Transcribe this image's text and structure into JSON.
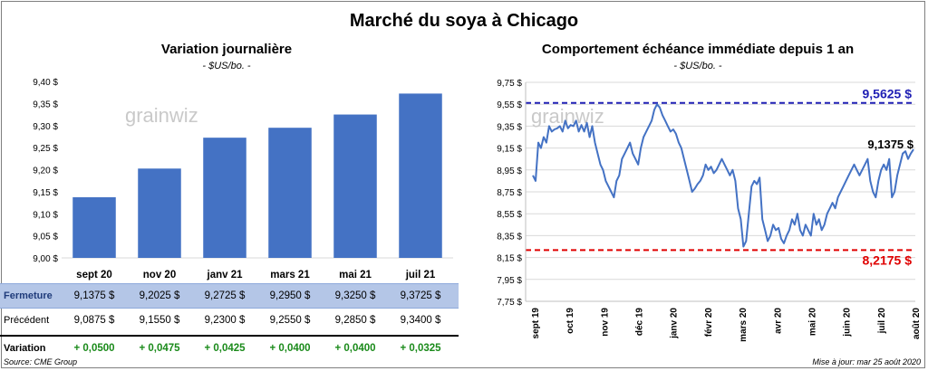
{
  "title": "Marché du soya à Chicago",
  "left": {
    "title": "Variation  journalière",
    "unit": "- $US/bo. -"
  },
  "right": {
    "title": "Comportement  échéance immédiate depuis 1 an",
    "unit": "- $US/bo. -"
  },
  "watermark": "grainwiz",
  "chart_data": [
    {
      "type": "bar",
      "title": "Variation  journalière",
      "ylabel": "- $US/bo. -",
      "categories": [
        "sept 20",
        "nov 20",
        "janv 21",
        "mars 21",
        "mai 21",
        "juil 21"
      ],
      "values": [
        9.1375,
        9.2025,
        9.2725,
        9.295,
        9.325,
        9.3725
      ],
      "ylim": [
        9.0,
        9.4
      ],
      "yticks": [
        "9,00 $",
        "9,05 $",
        "9,10 $",
        "9,15 $",
        "9,20 $",
        "9,25 $",
        "9,30 $",
        "9,35 $",
        "9,40 $"
      ],
      "color": "#4472c4",
      "grid": false
    },
    {
      "type": "line",
      "title": "Comportement  échéance immédiate depuis 1 an",
      "ylabel": "- $US/bo. -",
      "ylim": [
        7.75,
        9.75
      ],
      "yticks": [
        "7,75 $",
        "7,95 $",
        "8,15 $",
        "8,35 $",
        "8,55 $",
        "8,75 $",
        "8,95 $",
        "9,15 $",
        "9,35 $",
        "9,55 $",
        "9,75 $"
      ],
      "xticks": [
        "sept 19",
        "oct 19",
        "nov 19",
        "déc 19",
        "janv 20",
        "févr 20",
        "mars 20",
        "avr 20",
        "mai 20",
        "juin 20",
        "juil 20",
        "août 20"
      ],
      "series": [
        {
          "values": [
            8.9,
            8.85,
            9.2,
            9.15,
            9.25,
            9.2,
            9.35,
            9.3,
            9.32,
            9.33,
            9.35,
            9.3,
            9.4,
            9.33,
            9.36,
            9.35,
            9.4,
            9.3,
            9.36,
            9.3,
            9.38,
            9.25,
            9.35,
            9.2,
            9.1,
            9.0,
            8.95,
            8.85,
            8.8,
            8.75,
            8.7,
            8.85,
            8.9,
            9.05,
            9.1,
            9.15,
            9.2,
            9.1,
            9.05,
            9.0,
            9.15,
            9.25,
            9.3,
            9.35,
            9.4,
            9.5,
            9.55,
            9.52,
            9.45,
            9.4,
            9.35,
            9.3,
            9.32,
            9.28,
            9.2,
            9.15,
            9.05,
            8.95,
            8.85,
            8.75,
            8.78,
            8.82,
            8.85,
            8.9,
            9.0,
            8.95,
            8.98,
            8.92,
            8.95,
            9.0,
            9.05,
            9.0,
            8.95,
            8.9,
            8.95,
            8.85,
            8.6,
            8.5,
            8.25,
            8.3,
            8.55,
            8.8,
            8.85,
            8.82,
            8.88,
            8.5,
            8.4,
            8.3,
            8.35,
            8.45,
            8.4,
            8.42,
            8.32,
            8.28,
            8.35,
            8.4,
            8.5,
            8.45,
            8.55,
            8.4,
            8.35,
            8.45,
            8.4,
            8.35,
            8.55,
            8.45,
            8.5,
            8.4,
            8.45,
            8.55,
            8.6,
            8.65,
            8.6,
            8.7,
            8.75,
            8.8,
            8.85,
            8.9,
            8.95,
            9.0,
            8.95,
            8.9,
            8.95,
            9.0,
            9.05,
            8.85,
            8.75,
            8.7,
            8.85,
            8.95,
            9.0,
            8.95,
            9.05,
            8.7,
            8.75,
            8.9,
            9.0,
            9.1,
            9.12,
            9.05,
            9.1,
            9.1375
          ]
        }
      ],
      "reference_lines": [
        {
          "label": "9,5625 $",
          "value": 9.5625,
          "color": "#1f1fb4"
        },
        {
          "label": "8,2175 $",
          "value": 8.2175,
          "color": "#e00000"
        }
      ],
      "last_label": "9,1375 $",
      "grid": true
    }
  ],
  "table": {
    "columns": [
      "sept 20",
      "nov 20",
      "janv 21",
      "mars 21",
      "mai 21",
      "juil 21"
    ],
    "rows": [
      {
        "label": "Fermeture",
        "values": [
          "9,1375  $",
          "9,2025  $",
          "9,2725  $",
          "9,2950  $",
          "9,3250  $",
          "9,3725  $"
        ]
      },
      {
        "label": "Précédent",
        "values": [
          "9,0875  $",
          "9,1550  $",
          "9,2300  $",
          "9,2550  $",
          "9,2850  $",
          "9,3400  $"
        ]
      },
      {
        "label": "Variation",
        "values": [
          "+ 0,0500",
          "+ 0,0475",
          "+ 0,0425",
          "+ 0,0400",
          "+ 0,0400",
          "+ 0,0325"
        ]
      }
    ]
  },
  "source": "Source: CME Group",
  "updated": "Mise à jour: mar 25 août 2020"
}
